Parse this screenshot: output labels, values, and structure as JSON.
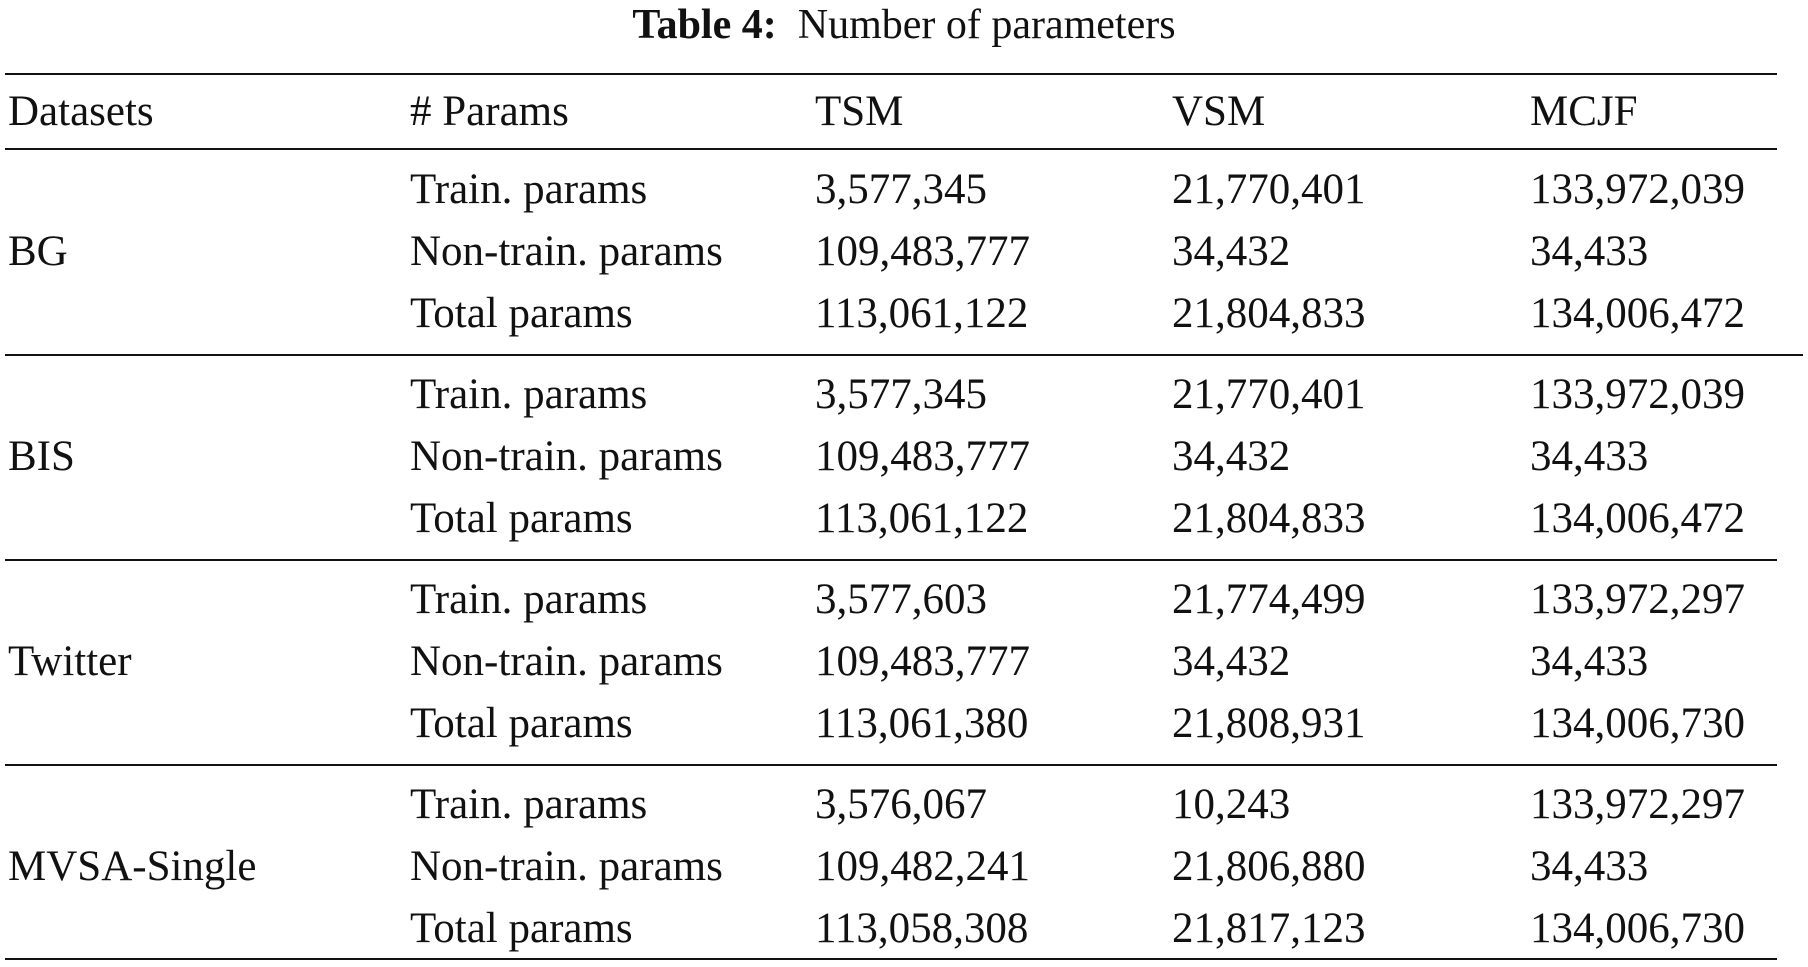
{
  "caption": {
    "label": "Table 4:",
    "title": "Number of parameters"
  },
  "table": {
    "headers": [
      "Datasets",
      "# Params",
      "TSM",
      "VSM",
      "MCJF"
    ],
    "groups": [
      {
        "dataset": "BG",
        "rows": [
          {
            "param": "Train. params",
            "tsm": "3,577,345",
            "vsm": "21,770,401",
            "mcjf": "133,972,039"
          },
          {
            "param": "Non-train. params",
            "tsm": "109,483,777",
            "vsm": "34,432",
            "mcjf": "34,433"
          },
          {
            "param": "Total params",
            "tsm": "113,061,122",
            "vsm": "21,804,833",
            "mcjf": "134,006,472"
          }
        ]
      },
      {
        "dataset": "BIS",
        "rows": [
          {
            "param": "Train. params",
            "tsm": "3,577,345",
            "vsm": "21,770,401",
            "mcjf": "133,972,039"
          },
          {
            "param": "Non-train. params",
            "tsm": "109,483,777",
            "vsm": "34,432",
            "mcjf": "34,433"
          },
          {
            "param": "Total params",
            "tsm": "113,061,122",
            "vsm": "21,804,833",
            "mcjf": "134,006,472"
          }
        ]
      },
      {
        "dataset": "Twitter",
        "rows": [
          {
            "param": "Train. params",
            "tsm": "3,577,603",
            "vsm": "21,774,499",
            "mcjf": "133,972,297"
          },
          {
            "param": "Non-train. params",
            "tsm": "109,483,777",
            "vsm": "34,432",
            "mcjf": "34,433"
          },
          {
            "param": "Total params",
            "tsm": "113,061,380",
            "vsm": "21,808,931",
            "mcjf": "134,006,730"
          }
        ]
      },
      {
        "dataset": "MVSA-Single",
        "rows": [
          {
            "param": "Train. params",
            "tsm": "3,576,067",
            "vsm": "10,243",
            "mcjf": "133,972,297"
          },
          {
            "param": "Non-train. params",
            "tsm": "109,482,241",
            "vsm": "21,806,880",
            "mcjf": "34,433"
          },
          {
            "param": "Total params",
            "tsm": "113,058,308",
            "vsm": "21,817,123",
            "mcjf": "134,006,730"
          }
        ]
      }
    ]
  }
}
